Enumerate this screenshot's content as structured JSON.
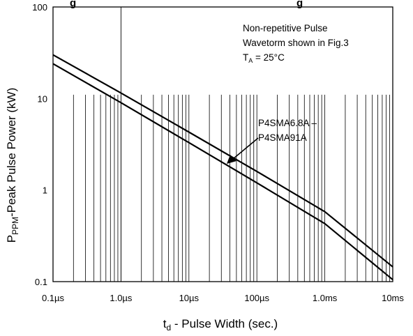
{
  "chart_data": {
    "type": "line",
    "title": "g",
    "title_right": "g",
    "xlabel": "td - Pulse Width (sec.)",
    "xlabel_parts": {
      "main": "t",
      "sub": "d",
      "rest": " - Pulse Width (sec.)"
    },
    "ylabel": "PPPM-Peak Pulse Power (kW)",
    "ylabel_parts": {
      "main": "P",
      "sub": "PPM",
      "rest": "-Peak Pulse Power (kW)"
    },
    "x_scale": "log",
    "y_scale": "log",
    "xlim": [
      1e-07,
      0.01
    ],
    "ylim": [
      0.1,
      100
    ],
    "grid": true,
    "x_tick_values": [
      1e-07,
      1e-06,
      1e-05,
      0.0001,
      0.001,
      0.01
    ],
    "x_tick_labels": [
      "0.1µs",
      "1.0µs",
      "10µs",
      "100µs",
      "1.0ms",
      "10ms"
    ],
    "y_tick_values": [
      0.1,
      1,
      10,
      100
    ],
    "y_tick_labels": [
      "0.1",
      "1",
      "10",
      "100"
    ],
    "series": [
      {
        "x": [
          1e-07,
          1e-06,
          1e-05,
          0.0001,
          0.001,
          0.01
        ],
        "y": [
          30,
          11.5,
          4.3,
          1.6,
          0.58,
          0.145
        ]
      },
      {
        "x": [
          1e-07,
          1e-06,
          1e-05,
          0.0001,
          0.001,
          0.01
        ],
        "y": [
          24,
          9,
          3.3,
          1.2,
          0.43,
          0.105
        ]
      }
    ],
    "annotations": [
      {
        "lines": [
          "Non-repetitive Pulse",
          "Wavetorm shown in Fig.3"
        ]
      },
      {
        "main": "T",
        "sub": "A",
        "rest": " = 25°C"
      },
      {
        "lines": [
          "P4SMA6.8A –",
          "P4SMA91A"
        ]
      }
    ]
  }
}
